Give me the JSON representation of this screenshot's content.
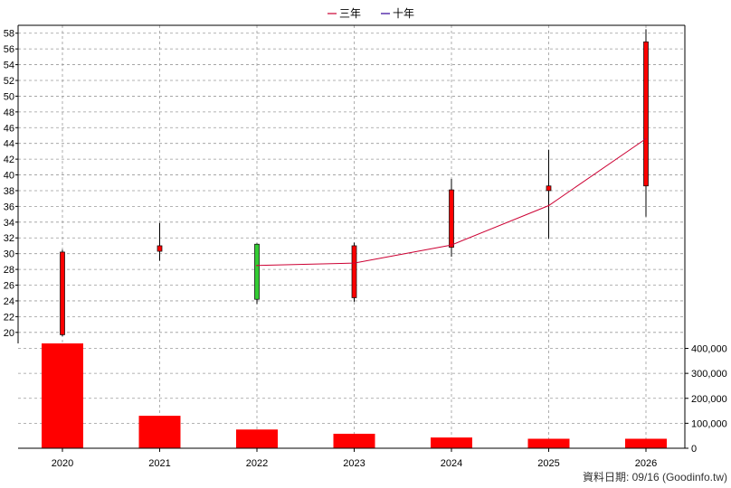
{
  "chart_data": {
    "type": "candlestick",
    "legend": [
      {
        "label": "三年",
        "color": "#cc0033"
      },
      {
        "label": "十年",
        "color": "#330099"
      }
    ],
    "years": [
      "2020",
      "2021",
      "2022",
      "2023",
      "2024",
      "2025",
      "2026"
    ],
    "candles": [
      {
        "open": 19.7,
        "close": 30.2,
        "high": 30.5,
        "low": 19.5
      },
      {
        "open": 30.3,
        "close": 31.0,
        "high": 33.9,
        "low": 29.1
      },
      {
        "open": 31.2,
        "close": 24.2,
        "high": 31.3,
        "low": 23.6
      },
      {
        "open": 24.4,
        "close": 31.0,
        "high": 31.4,
        "low": 23.9
      },
      {
        "open": 30.8,
        "close": 38.1,
        "high": 39.5,
        "low": 29.6
      },
      {
        "open": 38.0,
        "close": 38.6,
        "high": 43.2,
        "low": 31.9
      },
      {
        "open": 38.6,
        "close": 56.9,
        "high": 58.5,
        "low": 34.7
      }
    ],
    "up_color": "#ff0000",
    "down_color": "#33cc33",
    "three_year_line": [
      {
        "year": "2022",
        "value": 28.5
      },
      {
        "year": "2023",
        "value": 28.8
      },
      {
        "year": "2024",
        "value": 31.1
      },
      {
        "year": "2025",
        "value": 36.1
      },
      {
        "year": "2026",
        "value": 44.6
      }
    ],
    "price_axis": {
      "min": 18.6,
      "max": 59.0,
      "ticks": [
        20,
        22,
        24,
        26,
        28,
        30,
        32,
        34,
        36,
        38,
        40,
        42,
        44,
        46,
        48,
        50,
        52,
        54,
        56,
        58
      ]
    },
    "volume": {
      "values": [
        420000,
        130000,
        75000,
        58000,
        43000,
        38000,
        38000
      ],
      "color": "#ff0000",
      "axis_max": 420000,
      "ticks": [
        0,
        100000,
        200000,
        300000,
        400000
      ],
      "tick_labels": [
        "0",
        "100,000",
        "200,000",
        "300,000",
        "400,000"
      ]
    },
    "grid": true
  },
  "footer": "資料日期: 09/16  (Goodinfo.tw)"
}
